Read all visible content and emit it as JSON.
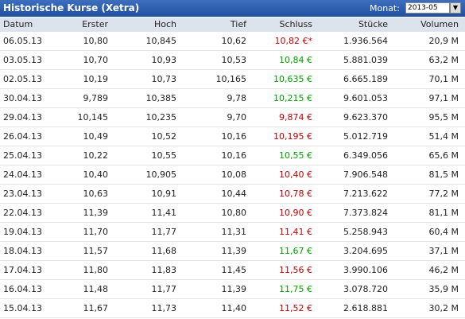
{
  "header": {
    "title": "Historische Kurse (Xetra)",
    "month_label": "Monat:",
    "month_value": "2013-05"
  },
  "table": {
    "columns": [
      "Datum",
      "Erster",
      "Hoch",
      "Tief",
      "Schluss",
      "Stücke",
      "Volumen"
    ],
    "rows": [
      [
        "06.05.13",
        "10,80",
        "10,845",
        "10,62",
        "10,82 €*",
        "1.936.564",
        "20,9 M"
      ],
      [
        "03.05.13",
        "10,70",
        "10,93",
        "10,53",
        "10,84 €",
        "5.881.039",
        "63,2 M"
      ],
      [
        "02.05.13",
        "10,19",
        "10,73",
        "10,165",
        "10,635 €",
        "6.665.189",
        "70,1 M"
      ],
      [
        "30.04.13",
        "9,789",
        "10,385",
        "9,78",
        "10,215 €",
        "9.601.053",
        "97,1 M"
      ],
      [
        "29.04.13",
        "10,145",
        "10,235",
        "9,70",
        "9,874 €",
        "9.623.370",
        "95,5 M"
      ],
      [
        "26.04.13",
        "10,49",
        "10,52",
        "10,16",
        "10,195 €",
        "5.012.719",
        "51,4 M"
      ],
      [
        "25.04.13",
        "10,22",
        "10,55",
        "10,16",
        "10,55 €",
        "6.349.056",
        "65,6 M"
      ],
      [
        "24.04.13",
        "10,40",
        "10,905",
        "10,08",
        "10,40 €",
        "7.906.548",
        "81,5 M"
      ],
      [
        "23.04.13",
        "10,63",
        "10,91",
        "10,44",
        "10,78 €",
        "7.213.622",
        "77,2 M"
      ],
      [
        "22.04.13",
        "11,39",
        "11,41",
        "10,80",
        "10,90 €",
        "7.373.824",
        "81,1 M"
      ],
      [
        "19.04.13",
        "11,70",
        "11,77",
        "11,31",
        "11,41 €",
        "5.258.943",
        "60,4 M"
      ],
      [
        "18.04.13",
        "11,57",
        "11,68",
        "11,39",
        "11,67 €",
        "3.204.695",
        "37,1 M"
      ],
      [
        "17.04.13",
        "11,80",
        "11,83",
        "11,45",
        "11,56 €",
        "3.990.106",
        "46,2 M"
      ],
      [
        "16.04.13",
        "11,48",
        "11,77",
        "11,39",
        "11,75 €",
        "3.078.720",
        "35,9 M"
      ],
      [
        "15.04.13",
        "11,67",
        "11,73",
        "11,40",
        "11,52 €",
        "2.618.881",
        "30,2 M"
      ]
    ],
    "schluss_colors": [
      "#c00000",
      "#00a000",
      "#00a000",
      "#00a000",
      "#c00000",
      "#c00000",
      "#00a000",
      "#c00000",
      "#c00000",
      "#c00000",
      "#c00000",
      "#00a000",
      "#c00000",
      "#00a000",
      "#c00000"
    ]
  }
}
